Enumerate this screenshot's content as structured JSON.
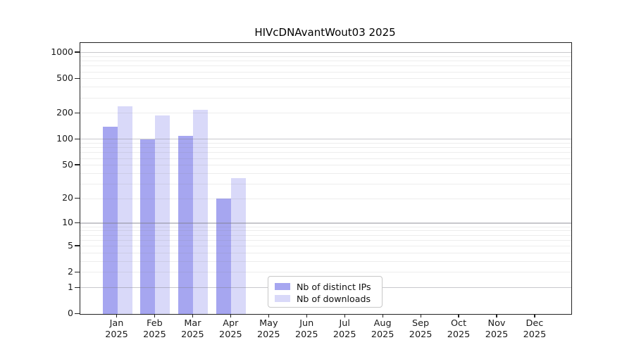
{
  "chart_data": {
    "type": "bar",
    "title": "HIVcDNAvantWout03 2025",
    "categories": [
      "Jan",
      "Feb",
      "Mar",
      "Apr",
      "May",
      "Jun",
      "Jul",
      "Aug",
      "Sep",
      "Oct",
      "Nov",
      "Dec"
    ],
    "year_label": "2025",
    "series": [
      {
        "name": "Nb of distinct IPs",
        "color": "#a6a6f0",
        "values": [
          140,
          100,
          110,
          20,
          0,
          0,
          0,
          0,
          0,
          0,
          0,
          0
        ]
      },
      {
        "name": "Nb of downloads",
        "color": "#d9d9f9",
        "values": [
          240,
          190,
          220,
          35,
          0,
          0,
          0,
          0,
          0,
          0,
          0,
          0
        ]
      }
    ],
    "yscale": "log1p",
    "ylim": [
      0,
      1300
    ],
    "yticks": [
      0,
      1,
      2,
      5,
      10,
      20,
      50,
      100,
      200,
      500,
      1000
    ],
    "major_grid_values": [
      1,
      10,
      100,
      1000
    ],
    "minor_grid_values": [
      2,
      3,
      4,
      5,
      6,
      7,
      8,
      9,
      20,
      30,
      40,
      50,
      60,
      70,
      80,
      90,
      200,
      300,
      400,
      500,
      600,
      700,
      800,
      900
    ],
    "grid": true,
    "legend_position": "lower center-left"
  }
}
